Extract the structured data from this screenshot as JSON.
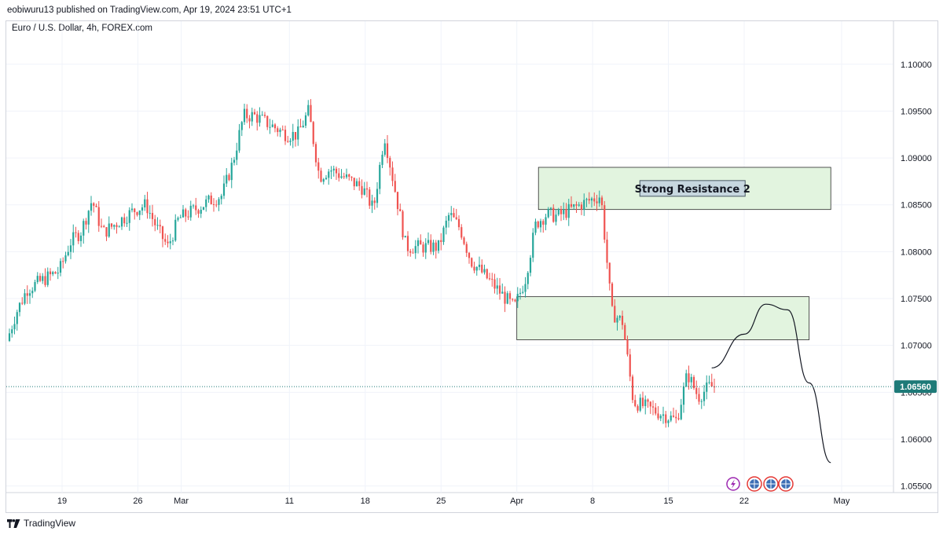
{
  "header": {
    "published_line": "eobiwuru13 published on TradingView.com, Apr 19, 2024 23:51 UTC+1"
  },
  "symbol_line": "Euro / U.S. Dollar, 4h, FOREX.com",
  "footer": {
    "brand": "TradingView"
  },
  "colors": {
    "bull": "#26a69a",
    "bear": "#ef5350",
    "zone_fill": "#e2f4df",
    "zone_stroke": "#2b2b2b",
    "price_line": "#1e7a78",
    "price_badge": "#1e7a78"
  },
  "icons": [
    "lightning-event-icon",
    "economic-event-icon",
    "economic-event-icon",
    "economic-event-icon"
  ],
  "chart_data": {
    "type": "candlestick",
    "title": "Euro / U.S. Dollar, 4h, FOREX.com",
    "x_ticks": [
      "19",
      "26",
      "Mar",
      "11",
      "18",
      "25",
      "Apr",
      "8",
      "15",
      "22",
      "May"
    ],
    "y_ticks": [
      "1.10000",
      "1.09500",
      "1.09000",
      "1.08500",
      "1.08000",
      "1.07500",
      "1.07000",
      "1.06500",
      "1.06000",
      "1.05500"
    ],
    "ylim": [
      1.0543,
      1.1035
    ],
    "current_price": {
      "label": "1.06560",
      "value": 1.0656
    },
    "zones": [
      {
        "label": "Strong Resistance 2",
        "start": "Apr 3",
        "end": "Apr 30",
        "high": 1.089,
        "low": 1.0845
      },
      {
        "label": "",
        "start": "Apr 1",
        "end": "Apr 28",
        "high": 1.0752,
        "low": 1.0706
      }
    ],
    "projection": [
      [
        "Apr 19",
        1.0676
      ],
      [
        "Apr 22",
        1.0712
      ],
      [
        "Apr 24",
        1.0744
      ],
      [
        "Apr 26",
        1.0738
      ],
      [
        "Apr 28",
        1.066
      ],
      [
        "Apr 30",
        1.0575
      ]
    ],
    "waypoints": [
      [
        "Feb 14",
        1.07
      ],
      [
        "Feb 15",
        1.0735
      ],
      [
        "Feb 16",
        1.076
      ],
      [
        "Feb 19",
        1.078
      ],
      [
        "Feb 20",
        1.081
      ],
      [
        "Feb 21",
        1.0822
      ],
      [
        "Feb 22",
        1.0855
      ],
      [
        "Feb 23",
        1.082
      ],
      [
        "Feb 26",
        1.0845
      ],
      [
        "Feb 27",
        1.085
      ],
      [
        "Feb 28",
        1.0825
      ],
      [
        "Feb 29",
        1.0805
      ],
      [
        "Mar 1",
        1.0835
      ],
      [
        "Mar 4",
        1.0855
      ],
      [
        "Mar 5",
        1.086
      ],
      [
        "Mar 6",
        1.0895
      ],
      [
        "Mar 7",
        1.0945
      ],
      [
        "Mar 8",
        1.0945
      ],
      [
        "Mar 11",
        1.0925
      ],
      [
        "Mar 12",
        1.0925
      ],
      [
        "Mar 13",
        1.095
      ],
      [
        "Mar 14",
        1.088
      ],
      [
        "Mar 15",
        1.0888
      ],
      [
        "Mar 18",
        1.0868
      ],
      [
        "Mar 19",
        1.0845
      ],
      [
        "Mar 20",
        1.0925
      ],
      [
        "Mar 21",
        1.0865
      ],
      [
        "Mar 22",
        1.0805
      ],
      [
        "Mar 25",
        1.0805
      ],
      [
        "Mar 26",
        1.084
      ],
      [
        "Mar 27",
        1.0825
      ],
      [
        "Mar 28",
        1.079
      ],
      [
        "Mar 29",
        1.0778
      ],
      [
        "Apr 1",
        1.074
      ],
      [
        "Apr 2",
        1.077
      ],
      [
        "Apr 3",
        1.083
      ],
      [
        "Apr 4",
        1.084
      ],
      [
        "Apr 5",
        1.0838
      ],
      [
        "Apr 8",
        1.0855
      ],
      [
        "Apr 9",
        1.086
      ],
      [
        "Apr 10",
        1.0735
      ],
      [
        "Apr 11",
        1.0725
      ],
      [
        "Apr 12",
        1.064
      ],
      [
        "Apr 15",
        1.0625
      ],
      [
        "Apr 16",
        1.062
      ],
      [
        "Apr 17",
        1.067
      ],
      [
        "Apr 18",
        1.0645
      ],
      [
        "Apr 19",
        1.0656
      ]
    ]
  }
}
